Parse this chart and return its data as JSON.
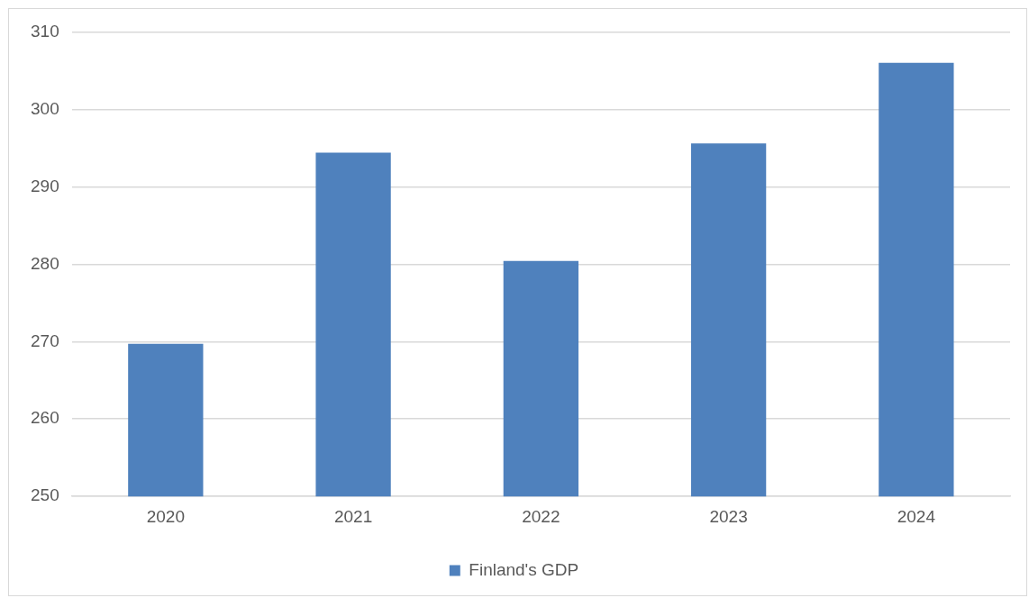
{
  "chart_data": {
    "type": "bar",
    "categories": [
      "2020",
      "2021",
      "2022",
      "2023",
      "2024"
    ],
    "series": [
      {
        "name": "Finland's GDP",
        "color": "#4f81bd",
        "values": [
          269.7,
          294.4,
          280.4,
          295.6,
          306.0
        ]
      }
    ],
    "ylim": [
      250,
      310
    ],
    "yticks": [
      250,
      260,
      270,
      280,
      290,
      300,
      310
    ],
    "grid": "y",
    "legend": "bottom"
  }
}
